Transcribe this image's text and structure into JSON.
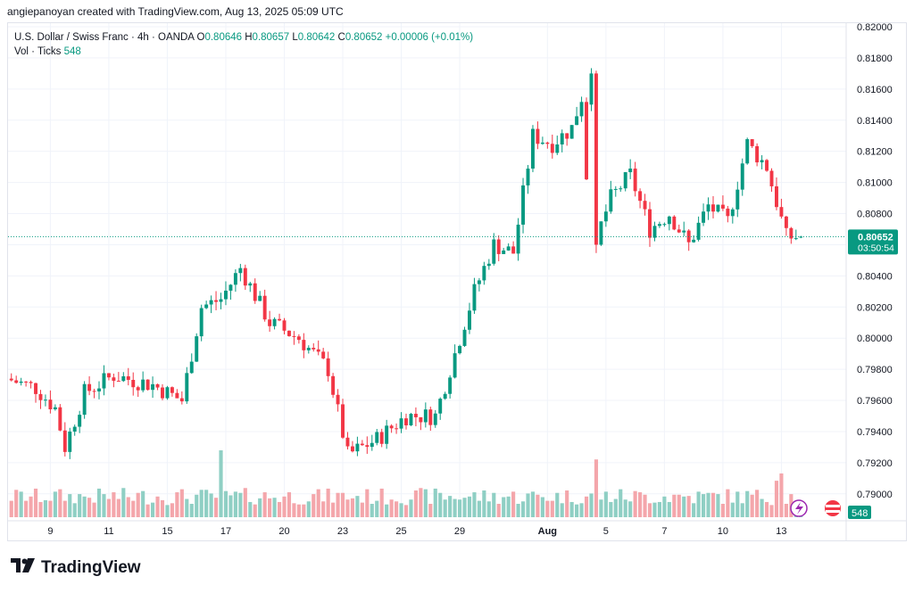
{
  "header": {
    "text": "angiepanoyan created with TradingView.com, Aug 13, 2025 05:09 UTC"
  },
  "legend": {
    "symbol": "U.S. Dollar / Swiss Franc · 4h · OANDA",
    "o_label": "O",
    "o": "0.80646",
    "h_label": "H",
    "h": "0.80657",
    "l_label": "L",
    "l": "0.80642",
    "c_label": "C",
    "c": "0.80652",
    "change": "+0.00006 (+0.01%)",
    "vol_label": "Vol · Ticks",
    "vol": "548"
  },
  "price_tag": {
    "price": "0.80652",
    "countdown": "03:50:54",
    "color": "#089981"
  },
  "volume_tag": "548",
  "footer": {
    "brand": "TradingView"
  },
  "colors": {
    "up": "#089981",
    "down": "#f23645",
    "up_vol": "#8fcfc4",
    "down_vol": "#f4a6ab"
  },
  "chart_data": {
    "type": "candlestick",
    "ylim": [
      0.7885,
      0.82
    ],
    "y_ticks": [
      "0.82000",
      "0.81800",
      "0.81600",
      "0.81400",
      "0.81200",
      "0.81000",
      "0.80800",
      "0.80600",
      "0.80400",
      "0.80200",
      "0.80000",
      "0.79800",
      "0.79600",
      "0.79400",
      "0.79200",
      "0.79000"
    ],
    "x_tick_labels": [
      {
        "label": "9",
        "index": 8
      },
      {
        "label": "11",
        "index": 20
      },
      {
        "label": "15",
        "index": 32
      },
      {
        "label": "17",
        "index": 44
      },
      {
        "label": "20",
        "index": 56
      },
      {
        "label": "23",
        "index": 68
      },
      {
        "label": "25",
        "index": 80
      },
      {
        "label": "29",
        "index": 92
      },
      {
        "label": "Aug",
        "index": 110
      },
      {
        "label": "5",
        "index": 122
      },
      {
        "label": "7",
        "index": 134
      },
      {
        "label": "10",
        "index": 146
      },
      {
        "label": "13",
        "index": 158
      }
    ],
    "grid": true,
    "last_price": 0.80652,
    "candles": [],
    "volume": []
  }
}
